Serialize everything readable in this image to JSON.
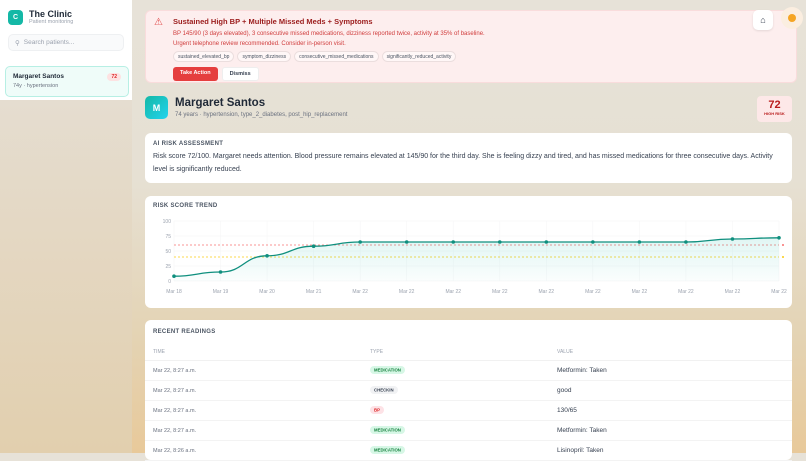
{
  "sidebar": {
    "brand_initial": "C",
    "title": "The Clinic",
    "subtitle": "Patient monitoring",
    "search_placeholder": "Search patients...",
    "patients": [
      {
        "name": "Margaret Santos",
        "sub": "74y · hypertension",
        "score": "72"
      }
    ]
  },
  "alert": {
    "title": "Sustained High BP + Multiple Missed Meds + Symptoms",
    "line1": "BP 145/90 (3 days elevated), 3 consecutive missed medications, dizziness reported twice, activity at 35% of baseline.",
    "line2": "Urgent telephone review recommended. Consider in-person visit.",
    "tags": [
      "sustained_elevated_bp",
      "symptom_dizziness",
      "consecutive_missed_medications",
      "significantly_reduced_activity"
    ],
    "primary": "Take Action",
    "secondary": "Dismiss"
  },
  "patient": {
    "initial": "M",
    "name": "Margaret Santos",
    "desc": "74 years · hypertension, type_2_diabetes, post_hip_replacement",
    "score": "72",
    "risk_label": "HIGH RISK"
  },
  "assessment": {
    "title": "AI RISK ASSESSMENT",
    "text": "Risk score 72/100. Margaret needs attention. Blood pressure remains elevated at 145/90 for the third day. She is feeling dizzy and tired, and has missed medications for three consecutive days. Activity level is significantly reduced."
  },
  "chart_data": {
    "type": "area",
    "title": "RISK SCORE TREND",
    "categories": [
      "Mar 18",
      "Mar 19",
      "Mar 20",
      "Mar 21",
      "Mar 22",
      "Mar 22",
      "Mar 22",
      "Mar 22",
      "Mar 22",
      "Mar 22",
      "Mar 22",
      "Mar 22",
      "Mar 22",
      "Mar 22"
    ],
    "values": [
      8,
      15,
      42,
      58,
      65,
      65,
      65,
      65,
      65,
      65,
      65,
      65,
      70,
      72
    ],
    "ylim": [
      0,
      100
    ],
    "yticks": [
      0,
      25,
      50,
      75,
      100
    ],
    "thresholds": [
      {
        "value": 60,
        "color": "#f87171"
      },
      {
        "value": 40,
        "color": "#facc15"
      }
    ],
    "line_color": "#0f8f7e",
    "grid": true
  },
  "readings": {
    "title": "RECENT READINGS",
    "columns": [
      "TIME",
      "TYPE",
      "VALUE"
    ],
    "rows": [
      {
        "time": "Mar 22, 8:27 a.m.",
        "type": "MEDICATION",
        "kind": "medication",
        "value": "Metformin: Taken"
      },
      {
        "time": "Mar 22, 8:27 a.m.",
        "type": "CHECKIN",
        "kind": "checkin",
        "value": "good"
      },
      {
        "time": "Mar 22, 8:27 a.m.",
        "type": "BP",
        "kind": "bp",
        "value": "130/65"
      },
      {
        "time": "Mar 22, 8:27 a.m.",
        "type": "MEDICATION",
        "kind": "medication",
        "value": "Metformin: Taken"
      },
      {
        "time": "Mar 22, 8:26 a.m.",
        "type": "MEDICATION",
        "kind": "medication",
        "value": "Lisinopril: Taken"
      }
    ]
  }
}
